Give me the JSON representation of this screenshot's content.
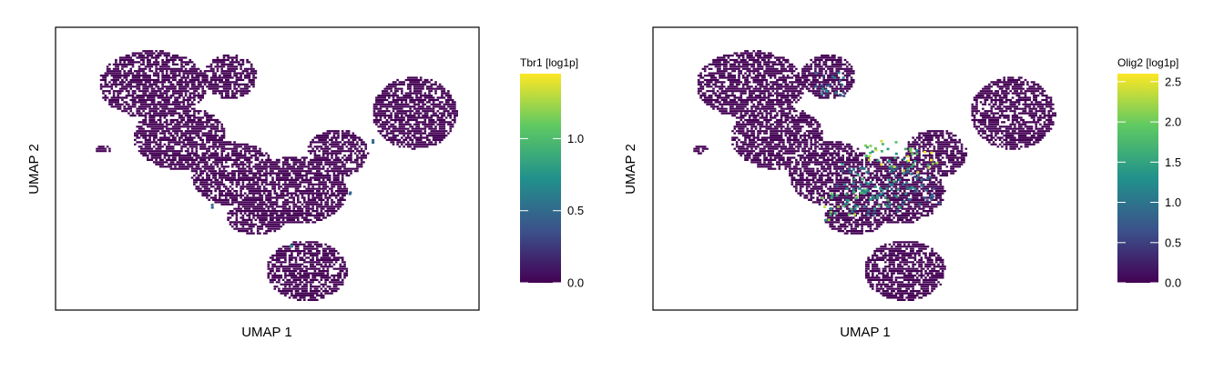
{
  "figure": {
    "panels": [
      {
        "gene": "Tbr1",
        "legend_title": "Tbr1 [log1p]",
        "xlabel": "UMAP 1",
        "ylabel": "UMAP 2"
      },
      {
        "gene": "Olig2",
        "legend_title": "Olig2 [log1p]",
        "xlabel": "UMAP 1",
        "ylabel": "UMAP 2"
      }
    ]
  },
  "colors": {
    "colormap": "viridis",
    "stops": [
      "#440154",
      "#3b528b",
      "#21918c",
      "#5ec962",
      "#fde725"
    ],
    "frame": "#000000",
    "background": "#ffffff"
  },
  "chart_data": [
    {
      "type": "scatter",
      "subtype": "hexbin-umap",
      "title": "",
      "xlabel": "UMAP 1",
      "ylabel": "UMAP 2",
      "xticks": [],
      "yticks": [],
      "grid": false,
      "colorbar": {
        "title": "Tbr1 [log1p]",
        "range": [
          0.0,
          1.45
        ],
        "ticks": [
          0.0,
          0.5,
          1.0
        ],
        "tick_labels": [
          "0.0",
          "0.5",
          "1.0"
        ]
      },
      "series": [
        {
          "name": "Tbr1 [log1p]",
          "value_summary": "nearly all cells ~0.0; a few scattered cells ~0.5–1.2",
          "hotspots": [
            {
              "x": 7.2,
              "y": 3.2,
              "v": 0.5
            },
            {
              "x": 3.0,
              "y": 1.6,
              "v": 0.45
            },
            {
              "x": 5.1,
              "y": 0.6,
              "v": 0.9
            },
            {
              "x": 6.6,
              "y": 1.9,
              "v": 0.4
            }
          ]
        }
      ]
    },
    {
      "type": "scatter",
      "subtype": "hexbin-umap",
      "title": "",
      "xlabel": "UMAP 1",
      "ylabel": "UMAP 2",
      "xticks": [],
      "yticks": [],
      "grid": false,
      "colorbar": {
        "title": "Olig2 [log1p]",
        "range": [
          0.0,
          2.6
        ],
        "ticks": [
          0.0,
          0.5,
          1.0,
          1.5,
          2.0,
          2.5
        ],
        "tick_labels": [
          "0.0",
          "0.5",
          "1.0",
          "1.5",
          "2.0",
          "2.5"
        ]
      },
      "series": [
        {
          "name": "Olig2 [log1p]",
          "value_summary": "expression concentrated in central region, values ~0.5–2.5",
          "hotspots": [
            {
              "x": 4.1,
              "y": 2.3,
              "v": 1.3
            },
            {
              "x": 4.8,
              "y": 2.1,
              "v": 1.6
            },
            {
              "x": 5.5,
              "y": 2.4,
              "v": 1.2
            },
            {
              "x": 4.4,
              "y": 1.7,
              "v": 1.4
            },
            {
              "x": 5.2,
              "y": 1.8,
              "v": 1.5
            },
            {
              "x": 6.0,
              "y": 2.0,
              "v": 0.9
            },
            {
              "x": 5.9,
              "y": 2.7,
              "v": 2.3
            },
            {
              "x": 4.9,
              "y": 2.9,
              "v": 2.2
            },
            {
              "x": 3.8,
              "y": 1.6,
              "v": 2.0
            },
            {
              "x": 3.5,
              "y": 4.6,
              "v": 1.0
            }
          ]
        }
      ]
    }
  ]
}
